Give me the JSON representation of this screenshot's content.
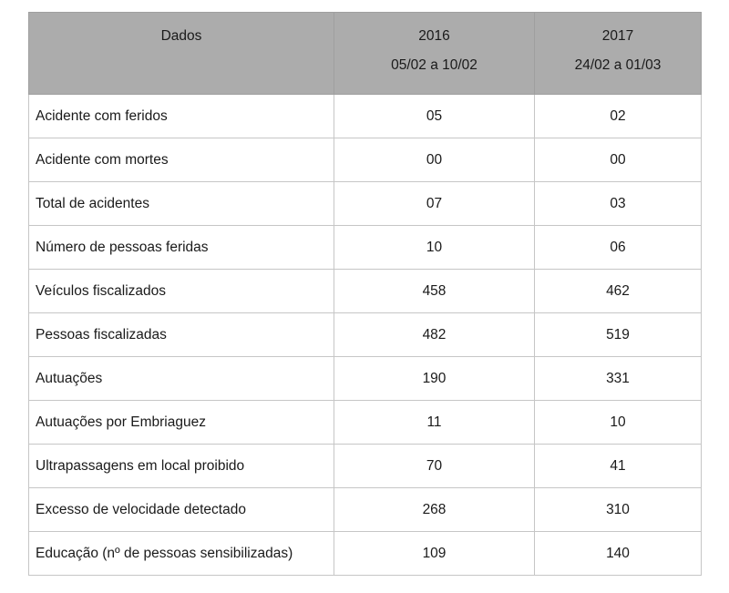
{
  "table": {
    "header": {
      "col_dados": {
        "label": "Dados",
        "sublabel": ""
      },
      "col_2016": {
        "label": "2016",
        "sublabel": "05/02 a 10/02"
      },
      "col_2017": {
        "label": "2017",
        "sublabel": "24/02 a 01/03"
      }
    },
    "rows": [
      {
        "label": "Acidente com feridos",
        "v2016": "05",
        "v2017": "02"
      },
      {
        "label": "Acidente com mortes",
        "v2016": "00",
        "v2017": "00"
      },
      {
        "label": "Total de acidentes",
        "v2016": "07",
        "v2017": "03"
      },
      {
        "label": "Número de pessoas feridas",
        "v2016": "10",
        "v2017": "06"
      },
      {
        "label": "Veículos fiscalizados",
        "v2016": "458",
        "v2017": "462"
      },
      {
        "label": "Pessoas fiscalizadas",
        "v2016": "482",
        "v2017": "519"
      },
      {
        "label": "Autuações",
        "v2016": "190",
        "v2017": "331"
      },
      {
        "label": "Autuações por Embriaguez",
        "v2016": "11",
        "v2017": "10"
      },
      {
        "label": "Ultrapassagens em local proibido",
        "v2016": "70",
        "v2017": "41"
      },
      {
        "label": "Excesso de velocidade detectado",
        "v2016": "268",
        "v2017": "310"
      },
      {
        "label": "Educação (nº de pessoas sensibilizadas)",
        "v2016": "109",
        "v2017": "140"
      }
    ]
  },
  "colors": {
    "header_background": "#acacac",
    "inner_border": "#c6c6c6",
    "outer_border": "#a3a3a3",
    "text": "#1a1a1a"
  }
}
